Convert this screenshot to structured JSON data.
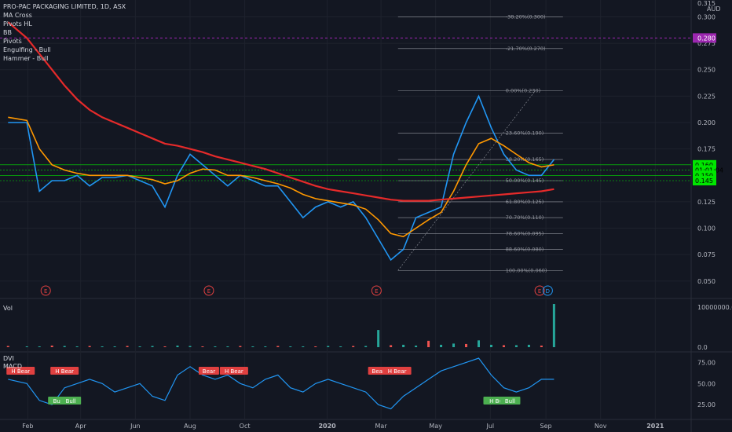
{
  "legend": {
    "title": "PRO-PAC PACKAGING LIMITED, 1D, ASX",
    "indicators": [
      "MA Cross",
      "Pivots HL",
      "BB",
      "Pivots",
      "Engulfing - Bull",
      "Hammer - Bull"
    ]
  },
  "axis": {
    "currency": "AUD",
    "top_label": "0.315",
    "hline_badge": "0.280",
    "price_badges": [
      {
        "label": "0.160",
        "value": 0.16,
        "color": "#00e600"
      },
      {
        "label": "01:01:04",
        "value": 0.155,
        "color": "#00e600"
      },
      {
        "label": "0.150",
        "value": 0.15,
        "color": "#00e600"
      },
      {
        "label": "0.145",
        "value": 0.145,
        "color": "#00e600"
      }
    ],
    "vol_ticks": [
      {
        "label": "10000000.0",
        "value": 10000000
      },
      {
        "label": "0.0",
        "value": 0
      }
    ],
    "dvi_ticks": [
      {
        "label": "75.00",
        "value": 75
      },
      {
        "label": "50.00",
        "value": 50
      },
      {
        "label": "25.00",
        "value": 25
      }
    ],
    "months": [
      "Feb",
      "Apr",
      "Jun",
      "Aug",
      "Oct",
      "2020",
      "Mar",
      "May",
      "Jul",
      "Sep",
      "Nov",
      "2021"
    ]
  },
  "panes": {
    "volume_label": "Vol",
    "dvi_label": "DVI",
    "macd_label": "MACD"
  },
  "chart_data": {
    "type": "line",
    "title": "PRO-PAC PACKAGING LIMITED, 1D, ASX",
    "ylabel": "AUD",
    "ylim": [
      0.035,
      0.31
    ],
    "y_ticks": [
      0.3,
      0.275,
      0.25,
      0.225,
      0.2,
      0.175,
      0.125,
      0.1,
      0.075,
      0.05
    ],
    "x_dates": [
      "2019-01-10",
      "2019-01-31",
      "2019-02-14",
      "2019-02-28",
      "2019-03-14",
      "2019-03-28",
      "2019-04-11",
      "2019-04-25",
      "2019-05-09",
      "2019-05-23",
      "2019-06-06",
      "2019-06-20",
      "2019-07-04",
      "2019-07-18",
      "2019-08-01",
      "2019-08-15",
      "2019-08-29",
      "2019-09-12",
      "2019-09-26",
      "2019-10-10",
      "2019-10-24",
      "2019-11-07",
      "2019-11-21",
      "2019-12-05",
      "2019-12-19",
      "2020-01-02",
      "2020-01-16",
      "2020-01-30",
      "2020-02-13",
      "2020-02-27",
      "2020-03-12",
      "2020-03-26",
      "2020-04-09",
      "2020-04-23",
      "2020-05-07",
      "2020-05-21",
      "2020-06-04",
      "2020-06-18",
      "2020-07-02",
      "2020-07-16",
      "2020-07-30",
      "2020-08-13",
      "2020-08-27",
      "2020-09-10"
    ],
    "series": [
      {
        "values": [
          0.2,
          0.2,
          0.135,
          0.145,
          0.145,
          0.15,
          0.14,
          0.148,
          0.148,
          0.15,
          0.145,
          0.14,
          0.12,
          0.15,
          0.17,
          0.16,
          0.15,
          0.14,
          0.15,
          0.145,
          0.14,
          0.14,
          0.125,
          0.11,
          0.12,
          0.125,
          0.12,
          0.125,
          0.11,
          0.09,
          0.07,
          0.08,
          0.11,
          0.115,
          0.12,
          0.17,
          0.2,
          0.225,
          0.195,
          0.17,
          0.155,
          0.15,
          0.15,
          0.165
        ],
        "color": "#2196f3"
      },
      {
        "values": [
          0.205,
          0.202,
          0.175,
          0.16,
          0.155,
          0.152,
          0.15,
          0.15,
          0.15,
          0.15,
          0.148,
          0.146,
          0.142,
          0.145,
          0.152,
          0.156,
          0.155,
          0.15,
          0.15,
          0.148,
          0.145,
          0.142,
          0.138,
          0.132,
          0.128,
          0.126,
          0.124,
          0.122,
          0.118,
          0.108,
          0.095,
          0.092,
          0.1,
          0.108,
          0.115,
          0.135,
          0.16,
          0.18,
          0.185,
          0.178,
          0.17,
          0.162,
          0.158,
          0.16
        ],
        "color": "#ff9800"
      },
      {
        "values": [
          0.295,
          0.28,
          0.265,
          0.25,
          0.235,
          0.222,
          0.212,
          0.205,
          0.2,
          0.195,
          0.19,
          0.185,
          0.18,
          0.178,
          0.175,
          0.172,
          0.168,
          0.165,
          0.162,
          0.159,
          0.156,
          0.152,
          0.148,
          0.144,
          0.14,
          0.137,
          0.135,
          0.133,
          0.131,
          0.129,
          0.127,
          0.126,
          0.126,
          0.126,
          0.127,
          0.128,
          0.129,
          0.13,
          0.131,
          0.132,
          0.133,
          0.134,
          0.135,
          0.137
        ],
        "color": "#e52a2a"
      }
    ],
    "price_lines": [
      0.16,
      0.155,
      0.15,
      0.145
    ],
    "dashed_level": 0.28,
    "fibonacci": [
      {
        "label": "-38.20%(0.300)",
        "value": 0.3
      },
      {
        "label": "-21.70%(0.270)",
        "value": 0.27
      },
      {
        "label": "0.00%(0.230)",
        "value": 0.23
      },
      {
        "label": "23.60%(0.190)",
        "value": 0.19
      },
      {
        "label": "38.20%(0.165)",
        "value": 0.165
      },
      {
        "label": "50.00%(0.145)",
        "value": 0.145
      },
      {
        "label": "61.80%(0.125)",
        "value": 0.125
      },
      {
        "label": "70.70%(0.110)",
        "value": 0.11
      },
      {
        "label": "78.60%(0.095)",
        "value": 0.095
      },
      {
        "label": "88.60%(0.080)",
        "value": 0.08
      },
      {
        "label": "100.00%(0.060)",
        "value": 0.06
      }
    ],
    "events": [
      {
        "date": "2019-02-21",
        "label": "E",
        "color": "#e04040"
      },
      {
        "date": "2019-08-22",
        "label": "E",
        "color": "#e04040"
      },
      {
        "date": "2020-02-25",
        "label": "E",
        "color": "#e04040"
      },
      {
        "date": "2020-08-25",
        "label": "E",
        "color": "#e04040"
      },
      {
        "date": "2020-09-03",
        "label": "D",
        "color": "#2196f3"
      }
    ],
    "volume": [
      0.3,
      0.2,
      0.2,
      0.4,
      0.3,
      0.2,
      0.3,
      0.2,
      0.2,
      0.3,
      0.2,
      0.3,
      0.2,
      0.4,
      0.3,
      0.2,
      0.2,
      0.2,
      0.3,
      0.2,
      0.2,
      0.3,
      0.2,
      0.2,
      0.2,
      0.3,
      0.2,
      0.3,
      0.3,
      4.3,
      0.5,
      0.6,
      0.4,
      1.6,
      0.6,
      0.9,
      0.8,
      1.7,
      0.6,
      0.5,
      0.5,
      0.6,
      0.4,
      10.8
    ],
    "volume_unit": "millions",
    "dvi": [
      55,
      50,
      30,
      25,
      45,
      50,
      55,
      50,
      40,
      45,
      50,
      35,
      30,
      60,
      70,
      60,
      55,
      60,
      50,
      45,
      55,
      60,
      45,
      40,
      50,
      55,
      50,
      45,
      40,
      25,
      20,
      35,
      45,
      55,
      65,
      70,
      75,
      80,
      60,
      45,
      40,
      45,
      55,
      55
    ],
    "signals": [
      {
        "date": "2019-01-24",
        "label": "H Bear",
        "color": "#e04040",
        "pos": "top"
      },
      {
        "date": "2019-03-14",
        "label": "H Bear",
        "color": "#e04040",
        "pos": "top"
      },
      {
        "date": "2019-03-07",
        "label": "Bull",
        "color": "#4caf50",
        "pos": "bottom"
      },
      {
        "date": "2019-03-21",
        "label": "Bull",
        "color": "#4caf50",
        "pos": "bottom"
      },
      {
        "date": "2019-08-22",
        "label": "Bear",
        "color": "#e04040",
        "pos": "top"
      },
      {
        "date": "2019-09-19",
        "label": "H Bear",
        "color": "#e04040",
        "pos": "top"
      },
      {
        "date": "2020-02-27",
        "label": "Bear",
        "color": "#e04040",
        "pos": "top"
      },
      {
        "date": "2020-03-19",
        "label": "H Bear",
        "color": "#e04040",
        "pos": "top"
      },
      {
        "date": "2020-07-09",
        "label": "H Bull",
        "color": "#4caf50",
        "pos": "bottom"
      },
      {
        "date": "2020-07-23",
        "label": "Bull",
        "color": "#4caf50",
        "pos": "bottom"
      }
    ]
  }
}
